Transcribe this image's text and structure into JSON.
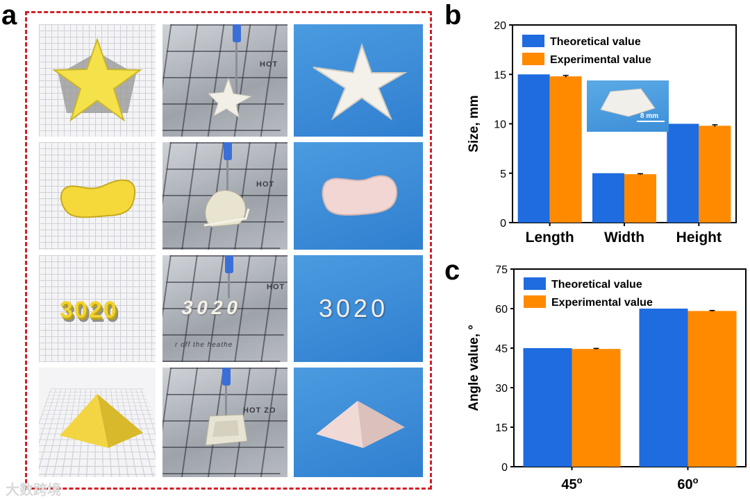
{
  "panel_labels": {
    "a": "a",
    "b": "b",
    "c": "c"
  },
  "panel_a": {
    "row3_cad_text": "3020",
    "row3_print_text": "3020",
    "row3_photo_text": "3020",
    "hot_labels": [
      "HOT",
      "HOT",
      "HOT",
      "HOT ZO"
    ],
    "plate_caption": "r off the heathe"
  },
  "inset": {
    "scale_label": "8 mm"
  },
  "watermark": "大数跨境",
  "colors": {
    "theoretical": "#1f6be0",
    "experimental": "#ff8a00",
    "frame": "#d21f26"
  },
  "chart_data": [
    {
      "id": "b",
      "type": "bar",
      "ylabel": "Size, mm",
      "xlabel": "",
      "ylim": [
        0,
        20
      ],
      "yticks": [
        0,
        5,
        10,
        15,
        20
      ],
      "categories": [
        "Length",
        "Width",
        "Height"
      ],
      "legend": [
        "Theoretical value",
        "Experimental value"
      ],
      "legend_position": "top-left",
      "series": [
        {
          "name": "Theoretical value",
          "values": [
            15,
            5,
            10
          ],
          "errors": [
            0,
            0,
            0
          ]
        },
        {
          "name": "Experimental value",
          "values": [
            14.8,
            4.9,
            9.8
          ],
          "errors": [
            0.1,
            0.05,
            0.1
          ]
        }
      ]
    },
    {
      "id": "c",
      "type": "bar",
      "ylabel": "Angle value, °",
      "xlabel": "",
      "ylim": [
        0,
        75
      ],
      "yticks": [
        0,
        15,
        30,
        45,
        60,
        75
      ],
      "categories": [
        "45°",
        "60°"
      ],
      "category_base": [
        "45",
        "60"
      ],
      "category_sup": "o",
      "legend": [
        "Theoretical value",
        "Experimental value"
      ],
      "legend_position": "top-left",
      "series": [
        {
          "name": "Theoretical value",
          "values": [
            45,
            60
          ],
          "errors": [
            0,
            0
          ]
        },
        {
          "name": "Experimental value",
          "values": [
            44.7,
            59.1
          ],
          "errors": [
            0.2,
            0.2
          ]
        }
      ]
    }
  ]
}
